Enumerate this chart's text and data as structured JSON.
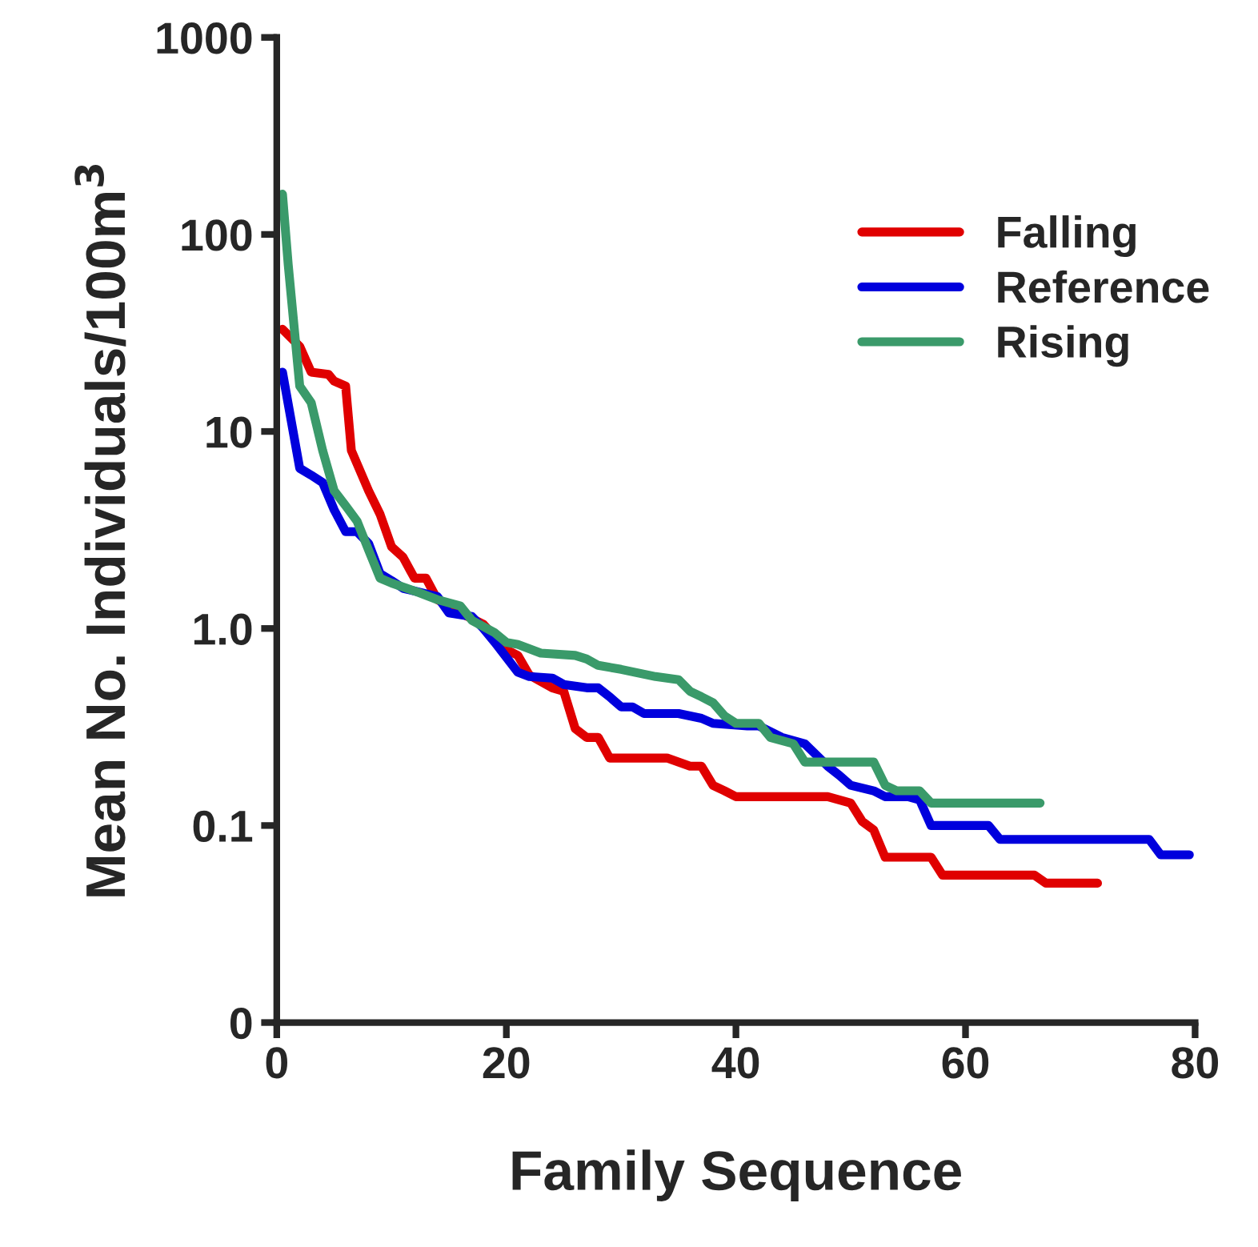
{
  "chart_data": {
    "type": "line",
    "xlabel": "Family Sequence",
    "ylabel": "Mean No. Individuals/100m$^{3}$",
    "log": "y",
    "xlim": [
      0,
      80
    ],
    "xticks": [
      0,
      20,
      40,
      60,
      80
    ],
    "ylim": [
      0.01,
      1000
    ],
    "yticks": [
      {
        "value": 0.01,
        "label": "0"
      },
      {
        "value": 0.1,
        "label": "0.1"
      },
      {
        "value": 1,
        "label": "1.0"
      },
      {
        "value": 10,
        "label": "10"
      },
      {
        "value": 100,
        "label": "100"
      },
      {
        "value": 1000,
        "label": "1000"
      }
    ],
    "grid": false,
    "legend": "top right",
    "marker": "none",
    "line_style": "solid",
    "series": [
      {
        "name": "Falling",
        "color": "#e00000",
        "x": [
          0.5,
          2,
          3,
          4.5,
          5,
          6,
          6.5,
          8,
          9,
          10,
          11,
          12,
          13,
          14,
          16,
          18,
          20,
          21,
          22,
          24,
          25,
          26,
          27,
          28,
          29,
          34,
          36,
          37,
          38,
          39,
          40,
          48,
          50,
          51,
          52,
          53,
          57,
          58,
          66,
          67,
          71.5
        ],
        "values": [
          33,
          27,
          20,
          19.5,
          18,
          17,
          8,
          5,
          3.8,
          2.6,
          2.3,
          1.8,
          1.8,
          1.4,
          1.2,
          1.05,
          0.78,
          0.73,
          0.58,
          0.5,
          0.48,
          0.31,
          0.28,
          0.28,
          0.22,
          0.22,
          0.2,
          0.2,
          0.16,
          0.15,
          0.14,
          0.14,
          0.13,
          0.105,
          0.095,
          0.069,
          0.069,
          0.056,
          0.056,
          0.051,
          0.051
        ]
      },
      {
        "name": "Reference",
        "color": "#0000dd",
        "x": [
          0.5,
          2,
          3,
          4,
          5,
          6,
          7,
          8,
          9,
          10,
          11,
          13,
          14,
          15,
          17,
          18,
          19,
          21,
          22,
          24,
          25,
          27,
          28,
          29,
          30,
          31,
          32,
          35,
          36,
          37,
          38,
          41,
          42,
          44,
          46,
          48,
          49,
          50,
          52,
          53,
          55,
          56,
          57,
          62,
          63,
          76,
          77,
          79.5
        ],
        "values": [
          20,
          6.5,
          6,
          5.5,
          4,
          3.1,
          3.1,
          2.7,
          1.9,
          1.75,
          1.6,
          1.5,
          1.45,
          1.2,
          1.15,
          1.0,
          0.85,
          0.6,
          0.57,
          0.56,
          0.52,
          0.5,
          0.5,
          0.45,
          0.4,
          0.4,
          0.37,
          0.37,
          0.36,
          0.35,
          0.33,
          0.32,
          0.32,
          0.28,
          0.26,
          0.2,
          0.18,
          0.16,
          0.15,
          0.14,
          0.14,
          0.135,
          0.1,
          0.1,
          0.085,
          0.085,
          0.071,
          0.071
        ]
      },
      {
        "name": "Rising",
        "color": "#3a9a6a",
        "x": [
          0.5,
          1,
          2,
          3,
          4,
          5,
          6,
          7,
          8,
          9,
          10,
          12,
          14,
          16,
          17,
          19,
          20,
          21,
          23,
          26,
          27,
          28,
          30,
          33,
          35,
          36,
          37,
          38,
          39,
          40,
          42,
          43,
          45,
          46,
          52,
          53,
          54,
          56,
          57,
          66.5
        ],
        "values": [
          160,
          70,
          17,
          14,
          8,
          5,
          4.2,
          3.5,
          2.5,
          1.8,
          1.7,
          1.55,
          1.4,
          1.3,
          1.1,
          0.95,
          0.85,
          0.83,
          0.75,
          0.73,
          0.7,
          0.65,
          0.62,
          0.57,
          0.55,
          0.48,
          0.45,
          0.42,
          0.36,
          0.33,
          0.33,
          0.28,
          0.26,
          0.21,
          0.21,
          0.16,
          0.15,
          0.15,
          0.13,
          0.13
        ]
      }
    ]
  }
}
